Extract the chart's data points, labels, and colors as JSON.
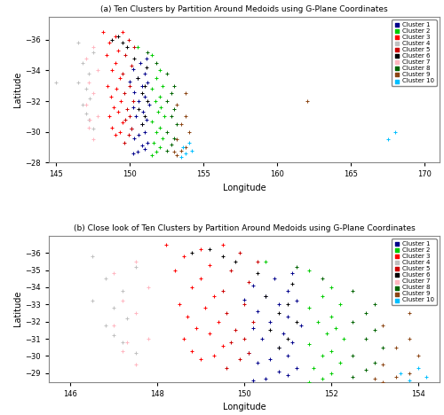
{
  "title_a": "(a) Ten Clusters by Partition Around Medoids using G-Plane Coordinates",
  "title_b": "(b) Close look of Ten Clusters by Partition Around Medoids using G-Plane Coordinates",
  "xlabel": "Longitude",
  "ylabel": "Latitude",
  "cluster_colors": [
    "#00008B",
    "#00CC00",
    "#FF0000",
    "#C0C0C0",
    "#CC0000",
    "#000000",
    "#FFB6C1",
    "#006400",
    "#8B4513",
    "#00BFFF"
  ],
  "cluster_names": [
    "Cluster 1",
    "Cluster 2",
    "Cluster 3",
    "Cluster 4",
    "Cluster 5",
    "Cluster 6",
    "Cluster 7",
    "Cluster 8",
    "Cluster 9",
    "Cluster 10"
  ],
  "xlim_a": [
    144.5,
    171
  ],
  "ylim_a": [
    -28,
    -37.5
  ],
  "xlim_b": [
    145.5,
    154.5
  ],
  "ylim_b": [
    -28.5,
    -37.0
  ],
  "xticks_a": [
    145,
    150,
    155,
    160,
    165,
    170
  ],
  "yticks_a": [
    -28,
    -30,
    -32,
    -34,
    -36
  ],
  "xticks_b": [
    146,
    148,
    150,
    152,
    154
  ],
  "yticks_b": [
    -29,
    -30,
    -31,
    -32,
    -33,
    -34,
    -35,
    -36
  ],
  "points": {
    "cluster1": [
      [
        150.2,
        -28.6
      ],
      [
        150.5,
        -28.7
      ],
      [
        151.0,
        -28.9
      ],
      [
        150.8,
        -29.1
      ],
      [
        151.2,
        -29.3
      ],
      [
        150.3,
        -29.6
      ],
      [
        150.6,
        -29.8
      ],
      [
        151.0,
        -30.0
      ],
      [
        150.1,
        -30.2
      ],
      [
        150.8,
        -30.5
      ],
      [
        151.1,
        -30.8
      ],
      [
        150.4,
        -31.0
      ],
      [
        150.9,
        -31.3
      ],
      [
        150.2,
        -31.6
      ],
      [
        151.3,
        -31.8
      ],
      [
        150.6,
        -32.0
      ],
      [
        151.0,
        -32.3
      ],
      [
        150.3,
        -32.6
      ],
      [
        150.8,
        -33.0
      ],
      [
        151.2,
        -33.2
      ],
      [
        150.5,
        -33.5
      ],
      [
        151.0,
        -33.8
      ],
      [
        150.2,
        -34.1
      ],
      [
        150.7,
        -34.5
      ],
      [
        151.1,
        -34.8
      ],
      [
        150.0,
        -33.3
      ]
    ],
    "cluster2": [
      [
        151.5,
        -28.5
      ],
      [
        151.8,
        -28.7
      ],
      [
        152.0,
        -29.0
      ],
      [
        151.6,
        -29.3
      ],
      [
        152.2,
        -29.6
      ],
      [
        151.8,
        -30.0
      ],
      [
        152.0,
        -30.3
      ],
      [
        151.5,
        -30.7
      ],
      [
        152.3,
        -31.0
      ],
      [
        151.9,
        -31.3
      ],
      [
        152.1,
        -31.6
      ],
      [
        151.7,
        -32.0
      ],
      [
        152.0,
        -32.3
      ],
      [
        151.5,
        -32.8
      ],
      [
        152.2,
        -33.0
      ],
      [
        151.8,
        -33.5
      ],
      [
        152.0,
        -34.0
      ],
      [
        151.5,
        -35.0
      ],
      [
        150.5,
        -35.5
      ]
    ],
    "cluster3": [
      [
        149.0,
        -29.8
      ],
      [
        149.3,
        -30.0
      ],
      [
        148.8,
        -30.3
      ],
      [
        149.5,
        -30.6
      ],
      [
        148.6,
        -31.0
      ],
      [
        149.2,
        -31.3
      ],
      [
        148.9,
        -31.6
      ],
      [
        149.4,
        -32.0
      ],
      [
        148.7,
        -32.3
      ],
      [
        149.1,
        -32.8
      ],
      [
        148.5,
        -33.0
      ],
      [
        149.3,
        -33.5
      ],
      [
        148.8,
        -34.0
      ],
      [
        149.0,
        -34.5
      ],
      [
        148.4,
        -35.0
      ],
      [
        149.2,
        -35.3
      ],
      [
        148.6,
        -35.8
      ],
      [
        149.0,
        -36.2
      ],
      [
        148.2,
        -36.5
      ],
      [
        149.5,
        -36.5
      ]
    ],
    "cluster4": [
      [
        147.5,
        -30.2
      ],
      [
        147.2,
        -30.8
      ],
      [
        147.0,
        -31.2
      ],
      [
        146.8,
        -31.8
      ],
      [
        147.3,
        -32.2
      ],
      [
        147.0,
        -32.8
      ],
      [
        146.5,
        -33.2
      ],
      [
        147.2,
        -33.8
      ],
      [
        146.8,
        -34.5
      ],
      [
        147.5,
        -35.2
      ],
      [
        146.5,
        -35.8
      ],
      [
        145.0,
        -33.2
      ]
    ],
    "cluster5": [
      [
        149.6,
        -29.3
      ],
      [
        149.9,
        -29.8
      ],
      [
        150.1,
        -30.2
      ],
      [
        149.7,
        -30.8
      ],
      [
        150.0,
        -31.0
      ],
      [
        149.8,
        -31.5
      ],
      [
        150.2,
        -32.0
      ],
      [
        149.6,
        -32.5
      ],
      [
        150.0,
        -33.0
      ],
      [
        149.5,
        -33.8
      ],
      [
        150.1,
        -34.3
      ],
      [
        149.7,
        -35.0
      ],
      [
        150.3,
        -35.5
      ],
      [
        149.9,
        -36.0
      ]
    ],
    "cluster6": [
      [
        150.8,
        -30.5
      ],
      [
        151.0,
        -31.0
      ],
      [
        150.6,
        -31.5
      ],
      [
        151.2,
        -32.0
      ],
      [
        150.8,
        -32.5
      ],
      [
        151.0,
        -33.0
      ],
      [
        150.5,
        -33.5
      ],
      [
        151.1,
        -34.2
      ],
      [
        150.3,
        -34.8
      ],
      [
        149.8,
        -35.5
      ],
      [
        149.2,
        -36.2
      ],
      [
        148.8,
        -36.0
      ],
      [
        149.5,
        -35.8
      ]
    ],
    "cluster7": [
      [
        147.5,
        -29.5
      ],
      [
        147.2,
        -30.3
      ],
      [
        147.8,
        -31.0
      ],
      [
        147.0,
        -31.8
      ],
      [
        147.5,
        -32.5
      ],
      [
        147.2,
        -33.2
      ],
      [
        147.8,
        -34.0
      ],
      [
        147.0,
        -34.8
      ],
      [
        147.5,
        -35.5
      ],
      [
        147.3,
        -30.8
      ]
    ],
    "cluster8": [
      [
        152.5,
        -28.8
      ],
      [
        152.8,
        -29.2
      ],
      [
        153.0,
        -29.6
      ],
      [
        152.5,
        -30.0
      ],
      [
        153.2,
        -30.5
      ],
      [
        152.8,
        -31.0
      ],
      [
        153.0,
        -31.5
      ],
      [
        152.5,
        -32.0
      ],
      [
        152.8,
        -32.5
      ],
      [
        153.0,
        -33.0
      ],
      [
        152.5,
        -33.8
      ],
      [
        151.8,
        -34.5
      ],
      [
        151.2,
        -35.2
      ]
    ],
    "cluster9": [
      [
        153.2,
        -28.5
      ],
      [
        153.5,
        -28.8
      ],
      [
        153.8,
        -29.0
      ],
      [
        153.2,
        -29.5
      ],
      [
        154.0,
        -30.0
      ],
      [
        153.5,
        -30.5
      ],
      [
        153.8,
        -31.0
      ],
      [
        153.2,
        -31.8
      ],
      [
        153.8,
        -32.5
      ],
      [
        162.0,
        -32.0
      ],
      [
        153.0,
        -28.7
      ]
    ],
    "cluster10": [
      [
        167.5,
        -29.5
      ],
      [
        153.5,
        -28.4
      ],
      [
        153.8,
        -28.6
      ],
      [
        154.2,
        -28.8
      ],
      [
        153.6,
        -29.0
      ],
      [
        154.0,
        -29.3
      ],
      [
        168.0,
        -30.0
      ]
    ]
  }
}
